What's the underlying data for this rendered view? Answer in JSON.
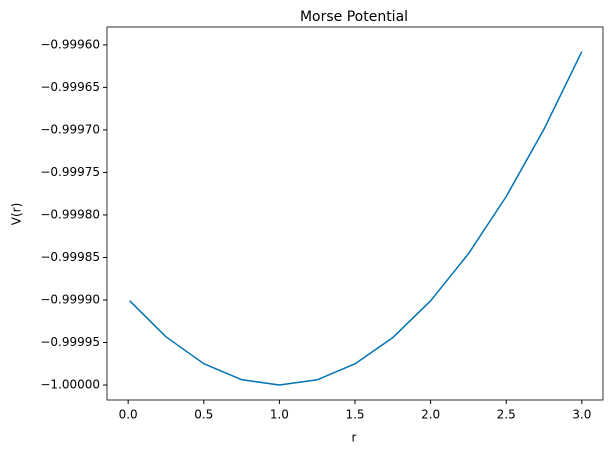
{
  "chart_data": {
    "type": "line",
    "title": "Morse Potential",
    "x_label": "r",
    "y_label": "V(r)",
    "x": [
      0.01,
      0.25,
      0.5,
      0.75,
      1.0,
      1.25,
      1.5,
      1.75,
      2.0,
      2.25,
      2.5,
      2.75,
      3.0
    ],
    "series": [
      {
        "name": "V(r)",
        "color": "#0173b2",
        "values": [
          -0.999901,
          -0.9999433,
          -0.9999749,
          -0.9999937,
          -1.0,
          -0.9999938,
          -0.9999751,
          -0.9999442,
          -0.999901,
          -0.9998457,
          -0.9997783,
          -0.9996991,
          -0.9996079
        ]
      }
    ],
    "xlim": [
      -0.14,
      3.14
    ],
    "ylim": [
      -1.0000176,
      -0.999579
    ],
    "xticks": [
      {
        "value": 0.0,
        "label": "0.0"
      },
      0.5,
      {
        "value": 1.0,
        "label": "1.0"
      },
      1.5,
      {
        "value": 2.0,
        "label": "2.0"
      },
      2.5,
      {
        "value": 3.0,
        "label": "3.0"
      }
    ],
    "yticks": [
      {
        "value": -1.0,
        "label": "−1.00000"
      },
      {
        "value": -0.99995,
        "label": "−0.99995"
      },
      {
        "value": -0.9999,
        "label": "−0.99990"
      },
      {
        "value": -0.99985,
        "label": "−0.99985"
      },
      {
        "value": -0.9998,
        "label": "−0.99980"
      },
      {
        "value": -0.99975,
        "label": "−0.99975"
      },
      {
        "value": -0.9997,
        "label": "−0.99970"
      },
      {
        "value": -0.99965,
        "label": "−0.99965"
      },
      {
        "value": -0.9996,
        "label": "−0.99960"
      }
    ],
    "grid": false
  }
}
